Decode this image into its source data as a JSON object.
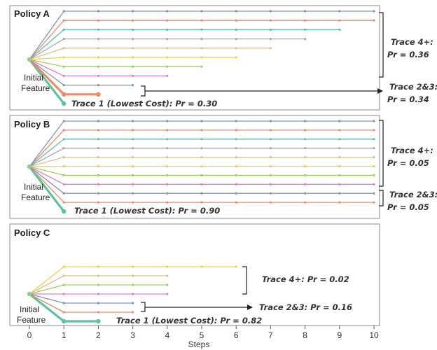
{
  "colors": {
    "teal": "#5cc3a0",
    "orange": "#f08a63",
    "blue": "#7d93c6",
    "pink": "#df7fca",
    "green": "#9cd15a",
    "yellow": "#f5cd49",
    "tan": "#dfc08d",
    "gray": "#a9a9a9",
    "bracket": "#222222"
  },
  "x_axis": {
    "ticks": [
      "0",
      "1",
      "2",
      "3",
      "4",
      "5",
      "6",
      "7",
      "8",
      "9",
      "10"
    ],
    "label": "Steps"
  },
  "panels": [
    {
      "title": "Policy A",
      "origin_label": [
        "Initial",
        "Feature"
      ],
      "traces": [
        {
          "steps": 1,
          "color": "teal",
          "bold": true
        },
        {
          "steps": 2,
          "color": "orange",
          "bold": true
        },
        {
          "steps": 3,
          "color": "blue"
        },
        {
          "steps": 4,
          "color": "pink"
        },
        {
          "steps": 5,
          "color": "green"
        },
        {
          "steps": 6,
          "color": "yellow"
        },
        {
          "steps": 7,
          "color": "tan"
        },
        {
          "steps": 8,
          "color": "gray"
        },
        {
          "steps": 9,
          "color": "teal"
        },
        {
          "steps": 10,
          "color": "orange"
        },
        {
          "steps": 10,
          "color": "blue"
        }
      ],
      "annotations": {
        "trace1": "Trace 1 (Lowest Cost): Pr = 0.30",
        "trace23_lines": [
          "Trace 2&3:",
          "Pr = 0.34"
        ],
        "trace4_lines": [
          "Trace 4+:",
          "Pr = 0.36"
        ]
      }
    },
    {
      "title": "Policy B",
      "origin_label": [
        "Initial",
        "Feature"
      ],
      "traces": [
        {
          "steps": 1,
          "color": "teal",
          "bold": true
        },
        {
          "steps": 10,
          "color": "orange"
        },
        {
          "steps": 10,
          "color": "blue"
        },
        {
          "steps": 10,
          "color": "pink"
        },
        {
          "steps": 10,
          "color": "green"
        },
        {
          "steps": 10,
          "color": "yellow"
        },
        {
          "steps": 10,
          "color": "tan"
        },
        {
          "steps": 10,
          "color": "gray"
        },
        {
          "steps": 10,
          "color": "teal"
        },
        {
          "steps": 10,
          "color": "orange"
        },
        {
          "steps": 10,
          "color": "blue"
        }
      ],
      "annotations": {
        "trace1": "Trace 1 (Lowest Cost): Pr = 0.90",
        "trace23_lines": [
          "Trace 2&3:",
          "Pr = 0.05"
        ],
        "trace4_lines": [
          "Trace 4+:",
          "Pr = 0.05"
        ]
      }
    },
    {
      "title": "Policy C",
      "origin_label": [
        "Initial",
        "Feature"
      ],
      "traces": [
        {
          "steps": 2,
          "color": "teal",
          "bold": true
        },
        {
          "steps": 3,
          "color": "orange"
        },
        {
          "steps": 3,
          "color": "blue"
        },
        {
          "steps": 4,
          "color": "pink"
        },
        {
          "steps": 4,
          "color": "green"
        },
        {
          "steps": 4,
          "color": "tan"
        },
        {
          "steps": 6,
          "color": "yellow"
        }
      ],
      "annotations": {
        "trace1": "Trace 1 (Lowest Cost): Pr = 0.82",
        "trace23_lines": [
          "Trace 2&3: Pr = 0.16"
        ],
        "trace4_lines": [
          "Trace 4+: Pr = 0.02"
        ]
      }
    }
  ]
}
